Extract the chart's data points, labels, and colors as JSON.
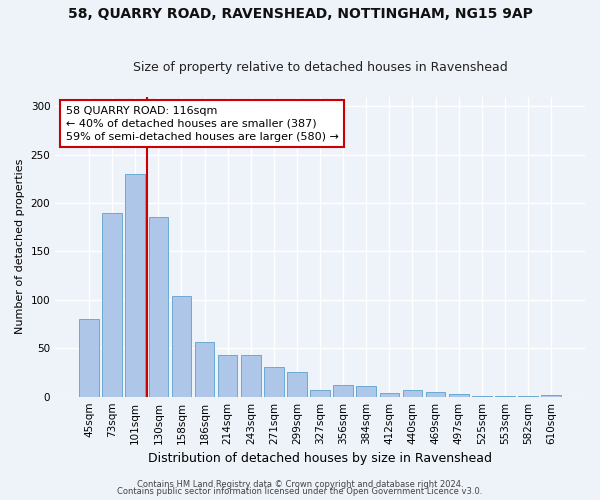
{
  "title_line1": "58, QUARRY ROAD, RAVENSHEAD, NOTTINGHAM, NG15 9AP",
  "title_line2": "Size of property relative to detached houses in Ravenshead",
  "xlabel": "Distribution of detached houses by size in Ravenshead",
  "ylabel": "Number of detached properties",
  "footnote1": "Contains HM Land Registry data © Crown copyright and database right 2024.",
  "footnote2": "Contains public sector information licensed under the Open Government Licence v3.0.",
  "categories": [
    "45sqm",
    "73sqm",
    "101sqm",
    "130sqm",
    "158sqm",
    "186sqm",
    "214sqm",
    "243sqm",
    "271sqm",
    "299sqm",
    "327sqm",
    "356sqm",
    "384sqm",
    "412sqm",
    "440sqm",
    "469sqm",
    "497sqm",
    "525sqm",
    "553sqm",
    "582sqm",
    "610sqm"
  ],
  "values": [
    80,
    190,
    230,
    186,
    104,
    56,
    43,
    43,
    31,
    25,
    7,
    12,
    11,
    4,
    7,
    5,
    3,
    1,
    1,
    1,
    2
  ],
  "bar_color": "#aec6e8",
  "bar_edge_color": "#6aaad4",
  "vline_x": 2.5,
  "vline_color": "#cc0000",
  "annotation_text": "58 QUARRY ROAD: 116sqm\n← 40% of detached houses are smaller (387)\n59% of semi-detached houses are larger (580) →",
  "annotation_box_color": "#ffffff",
  "annotation_box_edge": "#cc0000",
  "ylim": [
    0,
    310
  ],
  "yticks": [
    0,
    50,
    100,
    150,
    200,
    250,
    300
  ],
  "background_color": "#eef2f9",
  "grid_color": "#ffffff",
  "title1_fontsize": 10,
  "title2_fontsize": 9,
  "xlabel_fontsize": 9,
  "ylabel_fontsize": 8,
  "tick_fontsize": 7.5,
  "annot_fontsize": 8,
  "footnote_fontsize": 6
}
